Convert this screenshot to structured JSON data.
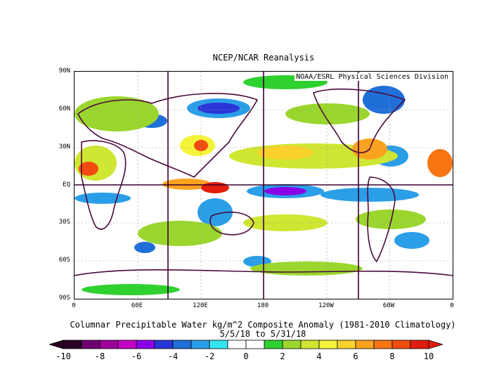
{
  "title": "NCEP/NCAR Reanalysis",
  "credit": "NOAA/ESRL Physical Sciences Division",
  "y_ticks": [
    "90N",
    "60N",
    "30N",
    "EQ",
    "30S",
    "60S",
    "90S"
  ],
  "x_ticks": [
    "0",
    "60E",
    "120E",
    "180",
    "120W",
    "60W",
    "0"
  ],
  "caption_line1": "Columnar Precipitable Water kg/m^2 Composite Anomaly (1981-2010 Climatology)",
  "caption_line2": "5/5/18 to 5/31/18",
  "colorbar": {
    "colors": [
      "#2b0024",
      "#6e0070",
      "#9c0098",
      "#c400c4",
      "#8a00e6",
      "#2a35d8",
      "#1f6fd9",
      "#2b9ee8",
      "#33e5ee",
      "#ffffff",
      "#ffffff",
      "#2fd12f",
      "#9ad62d",
      "#cfe632",
      "#f4f43a",
      "#fbd22c",
      "#fba21f",
      "#f77513",
      "#f24b0f",
      "#e11d0f"
    ],
    "labels": [
      "-10",
      "-8",
      "-6",
      "-4",
      "-2",
      "0",
      "2",
      "4",
      "6",
      "8",
      "10"
    ],
    "min": -10,
    "max": 10
  }
}
